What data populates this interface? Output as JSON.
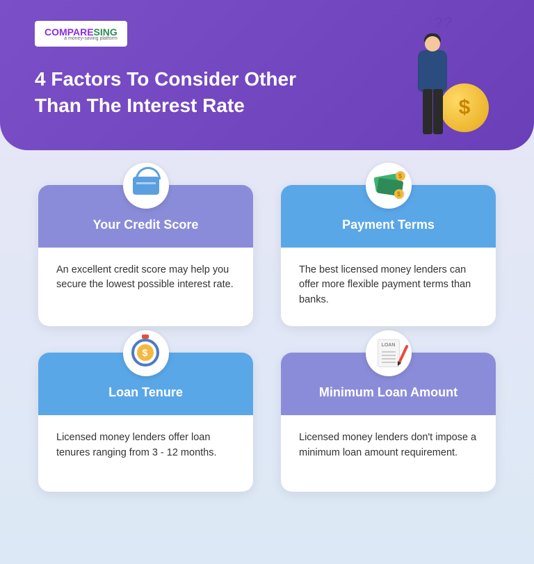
{
  "logo": {
    "part1": "C",
    "part2": "OMPARE",
    "part3": "S",
    "part4": "ING",
    "sub": "a money-saving platform"
  },
  "title": "4 Factors To Consider Other Than The Interest Rate",
  "header_bg": "#6a3fb8",
  "cards": [
    {
      "title": "Your Credit Score",
      "body": "An excellent credit score may help you secure the lowest possible interest rate.",
      "header_color": "#8b8cd9",
      "icon": "credit-score"
    },
    {
      "title": "Payment Terms",
      "body": "The best licensed money lenders can offer more flexible payment terms than banks.",
      "header_color": "#5aa7e8",
      "icon": "money"
    },
    {
      "title": "Loan Tenure",
      "body": "Licensed money lenders offer loan tenures ranging from 3 - 12 months.",
      "header_color": "#5aa7e8",
      "icon": "timer"
    },
    {
      "title": "Minimum Loan Amount",
      "body": "Licensed money lenders don't impose a minimum loan amount requirement.",
      "header_color": "#8b8cd9",
      "icon": "document"
    }
  ]
}
